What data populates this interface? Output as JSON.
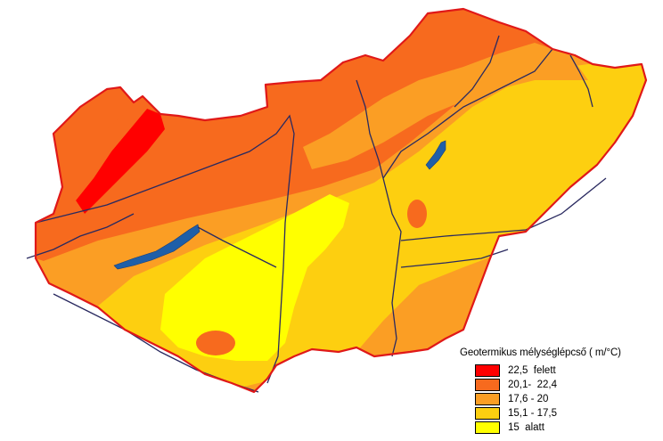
{
  "legend": {
    "title": "Geotermikus mélységlépcső  ( m/°C)",
    "items": [
      {
        "label": "22,5  felett",
        "color": "#ff0000"
      },
      {
        "label": "20,1-  22,4",
        "color": "#f76a1e"
      },
      {
        "label": "17,6 - 20",
        "color": "#fb9e24"
      },
      {
        "label": "15,1 - 17,5",
        "color": "#fdcf10"
      },
      {
        "label": "15  alatt",
        "color": "#ffff00"
      }
    ]
  },
  "map": {
    "lake_color": "#1f5fa8",
    "border_color": "#e01818",
    "river_color": "#2a2a60"
  }
}
